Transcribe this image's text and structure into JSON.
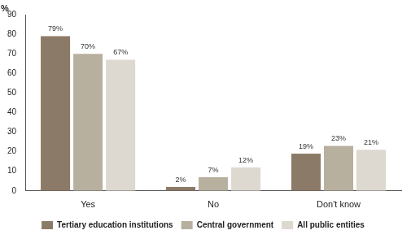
{
  "chart_data": {
    "type": "bar",
    "y_label": "%",
    "categories": [
      "Yes",
      "No",
      "Don't know"
    ],
    "series": [
      {
        "name": "Tertiary education institutions",
        "color": "#8c7a68",
        "values": [
          79,
          2,
          19
        ],
        "value_labels": [
          "79%",
          "2%",
          "19%"
        ]
      },
      {
        "name": "Central government",
        "color": "#b8b09f",
        "values": [
          70,
          7,
          23
        ],
        "value_labels": [
          "70%",
          "7%",
          "23%"
        ]
      },
      {
        "name": "All public entities",
        "color": "#ddd8d0",
        "values": [
          67,
          12,
          21
        ],
        "value_labels": [
          "67%",
          "12%",
          "21%"
        ]
      }
    ],
    "ylim": [
      0,
      90
    ],
    "yticks": [
      0,
      10,
      20,
      30,
      40,
      50,
      60,
      70,
      80,
      90
    ],
    "grid": false,
    "legend": "bottom",
    "data_labels": true
  }
}
